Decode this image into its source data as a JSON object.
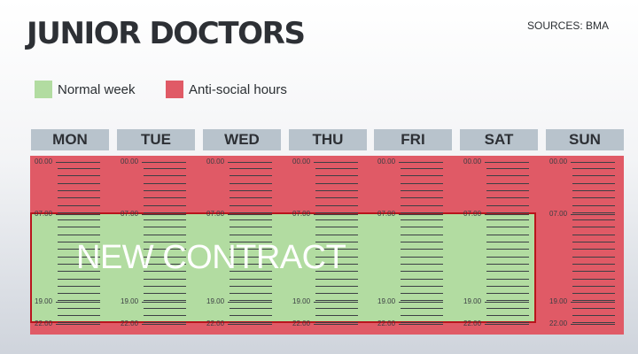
{
  "title": "JUNIOR DOCTORS",
  "sources": "SOURCES: BMA",
  "legend": [
    {
      "label": "Normal week",
      "color": "#b2dca1"
    },
    {
      "label": "Anti-social hours",
      "color": "#e05a66"
    }
  ],
  "days": [
    "MON",
    "TUE",
    "WED",
    "THU",
    "FRI",
    "SAT",
    "SUN"
  ],
  "time_labels": [
    "00.00",
    "07.00",
    "19.00",
    "22.00"
  ],
  "contract_label": "NEW CONTRACT",
  "contract_span": {
    "from_day": "MON",
    "to_day": "SAT",
    "start": "07.00",
    "end": "22.00"
  },
  "colors": {
    "normal_week": "#b2dca1",
    "anti_social": "#e05a66",
    "contract_border": "#b9141c",
    "header": "#b8c3cc"
  }
}
